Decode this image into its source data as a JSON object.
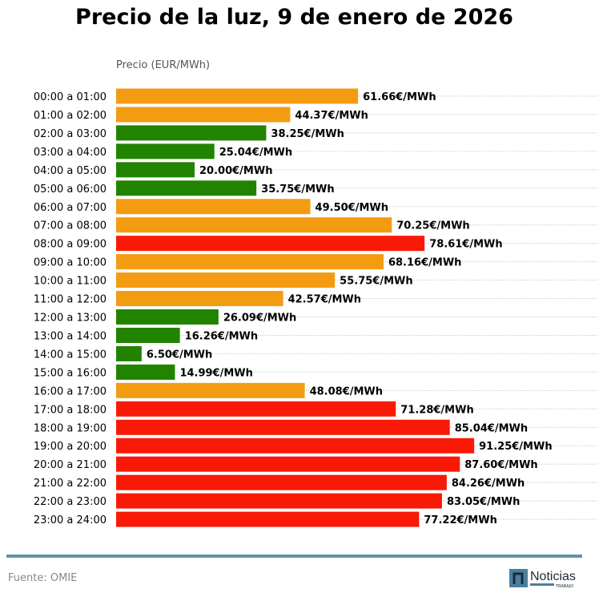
{
  "chart_data": {
    "type": "bar",
    "orientation": "horizontal",
    "title": "Precio de la luz, 9 de enero de 2026",
    "xlabel": "Precio (EUR/MWh)",
    "value_suffix": "€/MWh",
    "grid": "dotted horizontal",
    "categories": [
      "00:00 a 01:00",
      "01:00 a 02:00",
      "02:00 a 03:00",
      "03:00 a 04:00",
      "04:00 a 05:00",
      "05:00 a 06:00",
      "06:00 a 07:00",
      "07:00 a 08:00",
      "08:00 a 09:00",
      "09:00 a 10:00",
      "10:00 a 11:00",
      "11:00 a 12:00",
      "12:00 a 13:00",
      "13:00 a 14:00",
      "14:00 a 15:00",
      "15:00 a 16:00",
      "16:00 a 17:00",
      "17:00 a 18:00",
      "18:00 a 19:00",
      "19:00 a 20:00",
      "20:00 a 21:00",
      "21:00 a 22:00",
      "22:00 a 23:00",
      "23:00 a 24:00"
    ],
    "values": [
      61.66,
      44.37,
      38.25,
      25.04,
      20.0,
      35.75,
      49.5,
      70.25,
      78.61,
      68.16,
      55.75,
      42.57,
      26.09,
      16.26,
      6.5,
      14.99,
      48.08,
      71.28,
      85.04,
      91.25,
      87.6,
      84.26,
      83.05,
      77.22
    ],
    "labels": [
      "61.66€/MWh",
      "44.37€/MWh",
      "38.25€/MWh",
      "25.04€/MWh",
      "20.00€/MWh",
      "35.75€/MWh",
      "49.50€/MWh",
      "70.25€/MWh",
      "78.61€/MWh",
      "68.16€/MWh",
      "55.75€/MWh",
      "42.57€/MWh",
      "26.09€/MWh",
      "16.26€/MWh",
      "6.50€/MWh",
      "14.99€/MWh",
      "48.08€/MWh",
      "71.28€/MWh",
      "85.04€/MWh",
      "91.25€/MWh",
      "87.60€/MWh",
      "84.26€/MWh",
      "83.05€/MWh",
      "77.22€/MWh"
    ],
    "levels": [
      "mid",
      "mid",
      "low",
      "low",
      "low",
      "low",
      "mid",
      "mid",
      "high",
      "mid",
      "mid",
      "mid",
      "low",
      "low",
      "low",
      "low",
      "mid",
      "high",
      "high",
      "high",
      "high",
      "high",
      "high",
      "high"
    ],
    "colors": {
      "low": "#218300",
      "mid": "#f39c12",
      "high": "#f81a06"
    }
  },
  "footer": {
    "source": "Fuente: OMIE",
    "logo_text": "Noticias",
    "logo_subtext": "TRABAJO"
  }
}
